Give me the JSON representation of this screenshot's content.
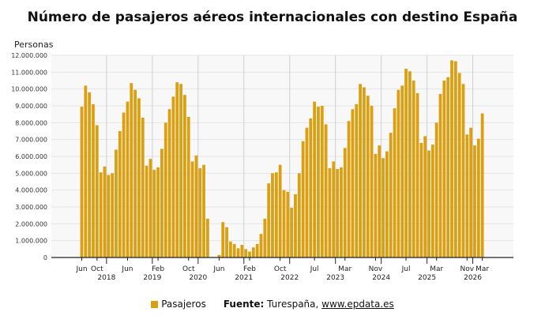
{
  "colors": {
    "bar": "#DAA012",
    "grid": "#e3e3e3",
    "plot_bg": "#f8f8f8"
  },
  "legend": {
    "series_label": "Pasajeros",
    "source_label": "Fuente:",
    "source_text": "Turespaña,",
    "source_link": "www.epdata.es"
  },
  "chart_data": {
    "type": "bar",
    "title": "Número de pasajeros aéreos internacionales con destino España",
    "ylabel": "Personas",
    "xlabel": "",
    "ylim": [
      0,
      12000000
    ],
    "yticks": [
      "0",
      "1.000.000",
      "2.000.000",
      "3.000.000",
      "4.000.000",
      "5.000.000",
      "6.000.000",
      "7.000.000",
      "8.000.000",
      "9.000.000",
      "10.000.000",
      "11.000.000",
      "12.000.000"
    ],
    "x_month_ticks": [
      {
        "label": "Jun",
        "index": 0
      },
      {
        "label": "Oct",
        "index": 4
      },
      {
        "label": "Jun",
        "index": 12
      },
      {
        "label": "Feb",
        "index": 20
      },
      {
        "label": "Oct",
        "index": 28
      },
      {
        "label": "Jun",
        "index": 36
      },
      {
        "label": "Feb",
        "index": 44
      },
      {
        "label": "Oct",
        "index": 52
      },
      {
        "label": "Jul",
        "index": 61
      },
      {
        "label": "Mar",
        "index": 69
      },
      {
        "label": "Nov",
        "index": 77
      },
      {
        "label": "Jul",
        "index": 85
      },
      {
        "label": "Mar",
        "index": 93
      },
      {
        "label": "Nov",
        "index": 101
      },
      {
        "label": "Mar",
        "index": 105
      }
    ],
    "x_year_ticks": [
      {
        "label": "2018",
        "index": 7
      },
      {
        "label": "2019",
        "index": 19
      },
      {
        "label": "2020",
        "index": 31
      },
      {
        "label": "2021",
        "index": 43
      },
      {
        "label": "2022",
        "index": 55
      },
      {
        "label": "2023",
        "index": 67
      },
      {
        "label": "2024",
        "index": 79
      },
      {
        "label": "2025",
        "index": 91
      },
      {
        "label": "2026",
        "index": 103
      }
    ],
    "x_start": "2017-06",
    "series": [
      {
        "name": "Pasajeros",
        "values": [
          8950000,
          10200000,
          9800000,
          9100000,
          7850000,
          5050000,
          5400000,
          4900000,
          5000000,
          6400000,
          7500000,
          8600000,
          9250000,
          10350000,
          9950000,
          9450000,
          8300000,
          5450000,
          5850000,
          5200000,
          5350000,
          6450000,
          8000000,
          8800000,
          9550000,
          10400000,
          10300000,
          9650000,
          8350000,
          5700000,
          6050000,
          5300000,
          5500000,
          2300000,
          0,
          0,
          150000,
          2100000,
          1800000,
          950000,
          800000,
          550000,
          750000,
          500000,
          350000,
          600000,
          800000,
          1400000,
          2300000,
          4400000,
          5000000,
          5050000,
          5500000,
          4000000,
          3900000,
          2950000,
          3750000,
          5000000,
          6900000,
          7700000,
          8250000,
          9250000,
          8950000,
          9000000,
          7900000,
          5300000,
          5700000,
          5250000,
          5350000,
          6500000,
          8100000,
          8800000,
          9100000,
          10300000,
          10100000,
          9600000,
          9000000,
          6150000,
          6650000,
          5900000,
          6300000,
          7400000,
          8850000,
          9950000,
          10200000,
          11200000,
          11050000,
          10500000,
          9750000,
          6800000,
          7200000,
          6350000,
          6700000,
          8000000,
          9700000,
          10500000,
          10700000,
          11700000,
          11650000,
          10950000,
          10300000,
          7300000,
          7700000,
          6650000,
          7050000,
          8550000
        ]
      }
    ]
  }
}
